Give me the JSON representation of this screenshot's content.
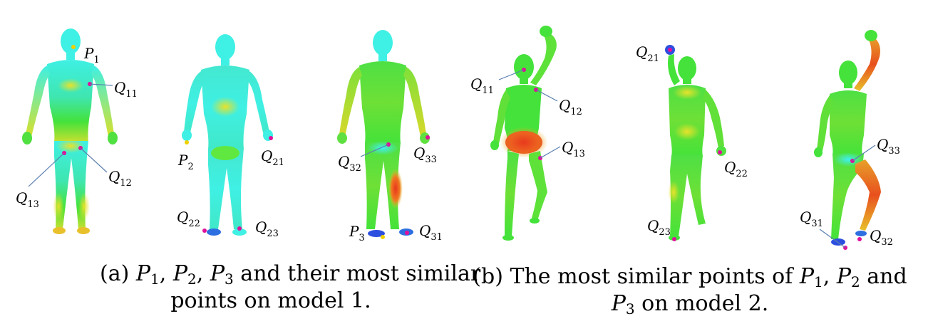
{
  "figure": {
    "caption_a": {
      "p1": "P",
      "p1_sub": "1",
      "p2": "P",
      "p2_sub": "2",
      "p3": "P",
      "p3_sub": "3",
      "line1_rest": " and their most similar",
      "line2": "points on model 1.",
      "prefix": "(a) "
    },
    "caption_b": {
      "line1_prefix": "(b) The most similar points of ",
      "p1": "P",
      "p1_sub": "1",
      "p2": "P",
      "p2_sub": "2",
      "and": " and",
      "p3": "P",
      "p3_sub": "3",
      "line2_rest": " on model 2."
    },
    "point_labels": [
      {
        "name": "P",
        "sub": "1"
      },
      {
        "name": "Q",
        "sub": "11"
      },
      {
        "name": "Q",
        "sub": "12"
      },
      {
        "name": "Q",
        "sub": "13"
      },
      {
        "name": "P",
        "sub": "2"
      },
      {
        "name": "Q",
        "sub": "21"
      },
      {
        "name": "Q",
        "sub": "22"
      },
      {
        "name": "Q",
        "sub": "23"
      },
      {
        "name": "P",
        "sub": "3"
      },
      {
        "name": "Q",
        "sub": "31"
      },
      {
        "name": "Q",
        "sub": "32"
      },
      {
        "name": "Q",
        "sub": "33"
      },
      {
        "name": "Q",
        "sub": "11"
      },
      {
        "name": "Q",
        "sub": "12"
      },
      {
        "name": "Q",
        "sub": "13"
      },
      {
        "name": "Q",
        "sub": "21"
      },
      {
        "name": "Q",
        "sub": "22"
      },
      {
        "name": "Q",
        "sub": "23"
      },
      {
        "name": "Q",
        "sub": "31"
      },
      {
        "name": "Q",
        "sub": "32"
      },
      {
        "name": "Q",
        "sub": "33"
      }
    ],
    "colors": {
      "base_cyan": "#3ff0e4",
      "mid_green": "#44e23a",
      "warm_yellow": "#e8e22a",
      "hot_red": "#e8361e",
      "cold_blue": "#2d4fe0",
      "marker_magenta": "#e0109a",
      "marker_yellow": "#f0d000",
      "leader_line": "#5a7fb0"
    }
  }
}
